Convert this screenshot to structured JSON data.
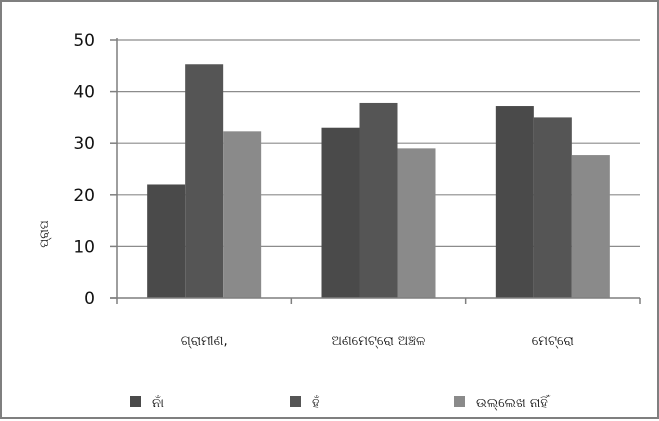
{
  "chart_data": {
    "type": "bar",
    "categories": [
      "ଗ୍ରାମୀଣ,",
      "ଅଣମେଟ୍ରୋ ଅଞ୍ଚଳ",
      "ମେଟ୍ରୋ"
    ],
    "series": [
      {
        "name": "ନାଁ",
        "values": [
          22,
          33,
          37.2
        ],
        "color": "#4a4a4a"
      },
      {
        "name": "ହଁ",
        "values": [
          45.3,
          37.8,
          35
        ],
        "color": "#555555"
      },
      {
        "name": "ଉଲ୍ଲେଖ ନାହିଁ",
        "values": [
          32.3,
          29,
          27.7
        ],
        "color": "#8a8a8a"
      }
    ],
    "yticks": [
      "0",
      "10",
      "20",
      "30",
      "40",
      "50"
    ],
    "ylim": [
      0,
      50
    ],
    "ylabel": "ପ୍ରାପ",
    "xlabel": "",
    "grid": true,
    "legend_position": "bottom"
  }
}
